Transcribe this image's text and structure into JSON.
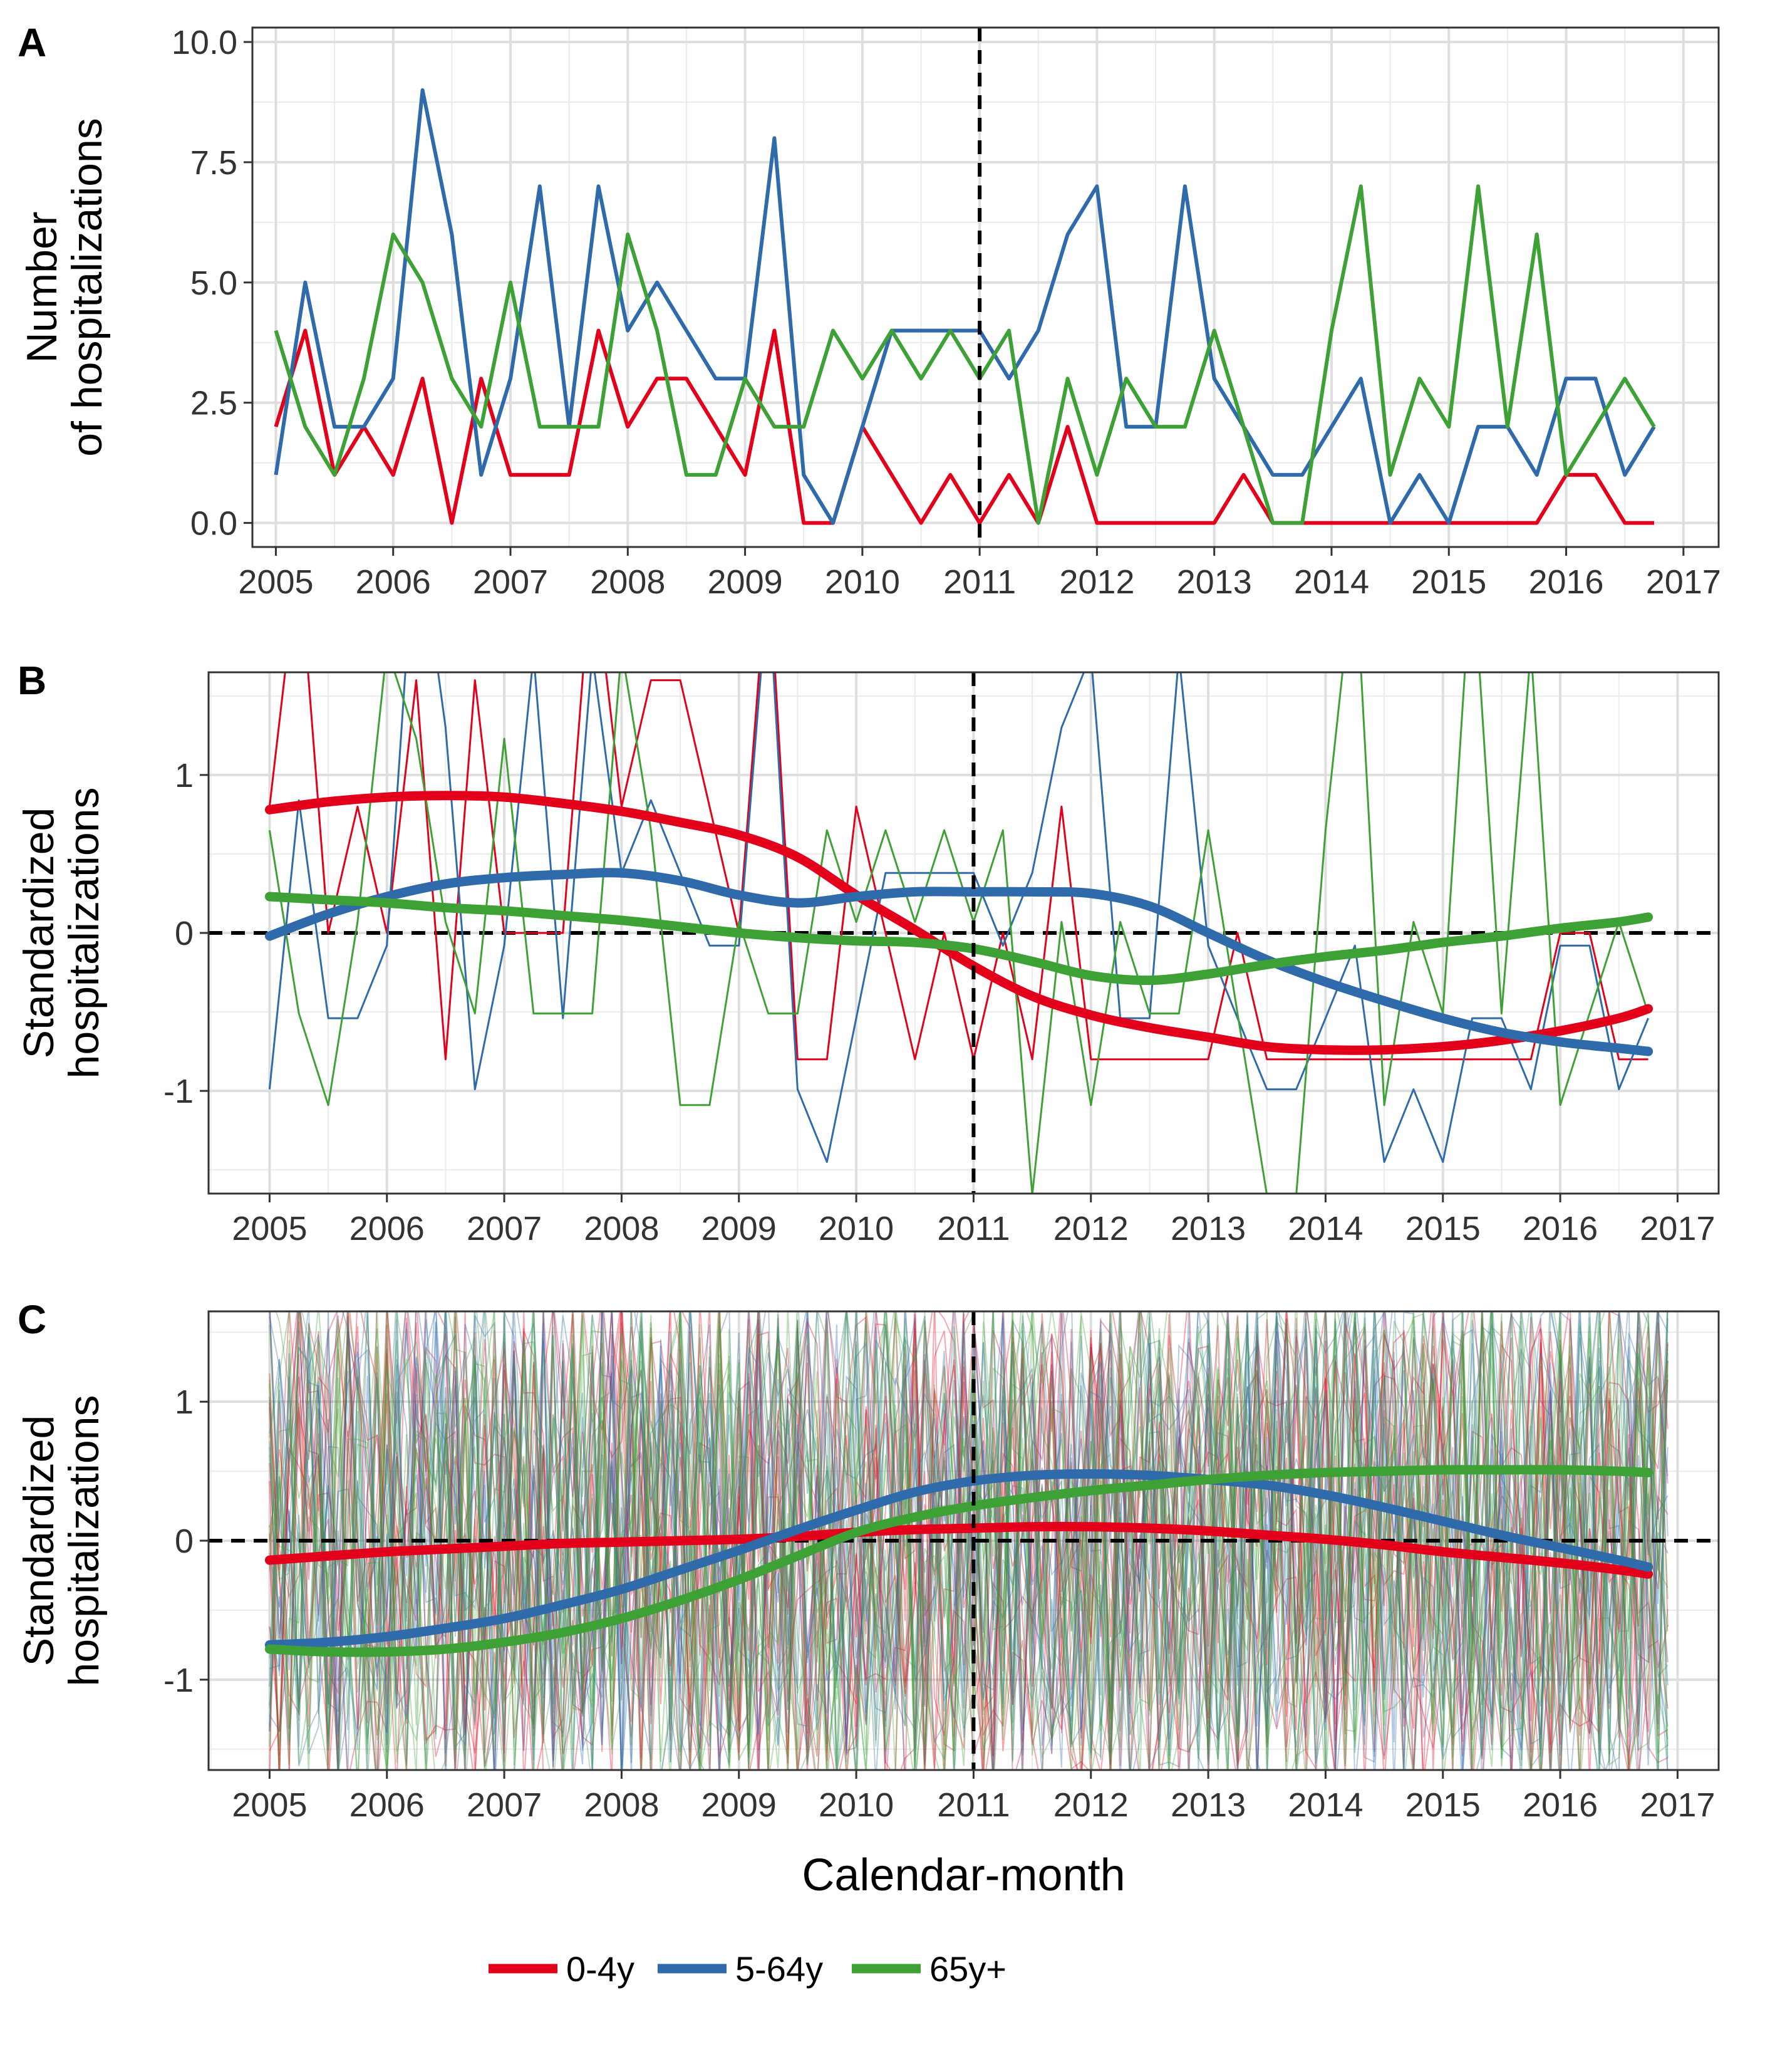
{
  "legend": {
    "position": "bottom",
    "items": [
      {
        "label": "0-4y",
        "color": "#E3001B"
      },
      {
        "label": "5-64y",
        "color": "#2F6BAB"
      },
      {
        "label": "65y+",
        "color": "#3EA136"
      }
    ]
  },
  "chart_data": [
    {
      "panel": "A",
      "type": "line",
      "ylabel": [
        "Number",
        "of hospitalizations"
      ],
      "xlabel": "",
      "xlim": [
        2004.8,
        2017.3
      ],
      "ylim": [
        -0.5,
        10.3
      ],
      "yticks": [
        0.0,
        2.5,
        5.0,
        7.5,
        10.0
      ],
      "ytick_labels": [
        "0.0",
        "2.5",
        "5.0",
        "7.5",
        "10.0"
      ],
      "xticks": [
        2005,
        2006,
        2007,
        2008,
        2009,
        2010,
        2011,
        2012,
        2013,
        2014,
        2015,
        2016,
        2017
      ],
      "vline": 2011,
      "grid": true,
      "x": [
        2005,
        2005.25,
        2005.5,
        2005.75,
        2006,
        2006.25,
        2006.5,
        2006.75,
        2007,
        2007.25,
        2007.5,
        2007.75,
        2008,
        2008.25,
        2008.5,
        2008.75,
        2009,
        2009.25,
        2009.5,
        2009.75,
        2010,
        2010.25,
        2010.5,
        2010.75,
        2011,
        2011.25,
        2011.5,
        2011.75,
        2012,
        2012.25,
        2012.5,
        2012.75,
        2013,
        2013.25,
        2013.5,
        2013.75,
        2014,
        2014.25,
        2014.5,
        2014.75,
        2015,
        2015.25,
        2015.5,
        2015.75,
        2016,
        2016.25,
        2016.5,
        2016.75
      ],
      "series": [
        {
          "name": "0-4y",
          "color": "#E3001B",
          "values": [
            2,
            4,
            1,
            2,
            1,
            3,
            0,
            3,
            1,
            1,
            1,
            4,
            2,
            3,
            3,
            2,
            1,
            4,
            0,
            0,
            2,
            1,
            0,
            1,
            0,
            1,
            0,
            2,
            0,
            0,
            0,
            0,
            0,
            1,
            0,
            0,
            0,
            0,
            0,
            0,
            0,
            0,
            0,
            0,
            1,
            1,
            0,
            0
          ]
        },
        {
          "name": "5-64y",
          "color": "#2F6BAB",
          "values": [
            1,
            5,
            2,
            2,
            3,
            9,
            6,
            1,
            3,
            7,
            2,
            7,
            4,
            5,
            4,
            3,
            3,
            8,
            1,
            0,
            2,
            4,
            4,
            4,
            4,
            3,
            4,
            6,
            7,
            2,
            2,
            7,
            3,
            2,
            1,
            1,
            2,
            3,
            0,
            1,
            0,
            2,
            2,
            1,
            3,
            3,
            1,
            2
          ]
        },
        {
          "name": "65y+",
          "color": "#3EA136",
          "values": [
            4,
            2,
            1,
            3,
            6,
            5,
            3,
            2,
            5,
            2,
            2,
            2,
            6,
            4,
            1,
            1,
            3,
            2,
            2,
            4,
            3,
            4,
            3,
            4,
            3,
            4,
            0,
            3,
            1,
            3,
            2,
            2,
            4,
            2,
            0,
            0,
            4,
            7,
            1,
            3,
            2,
            7,
            2,
            6,
            1,
            2,
            3,
            2
          ]
        }
      ]
    },
    {
      "panel": "B",
      "type": "line",
      "ylabel": [
        "Standardized",
        "hospitalizations"
      ],
      "xlabel": "",
      "xlim": [
        2004.48,
        2017.35
      ],
      "ylim": [
        -1.65,
        1.65
      ],
      "yticks": [
        -1,
        0,
        1
      ],
      "ytick_labels": [
        "-1",
        "0",
        "1"
      ],
      "xticks": [
        2005,
        2006,
        2007,
        2008,
        2009,
        2010,
        2011,
        2012,
        2013,
        2014,
        2015,
        2016,
        2017
      ],
      "vline": 2011,
      "hline": 0,
      "grid": true,
      "x": [
        2005,
        2005.25,
        2005.5,
        2005.75,
        2006,
        2006.25,
        2006.5,
        2006.75,
        2007,
        2007.25,
        2007.5,
        2007.75,
        2008,
        2008.25,
        2008.5,
        2008.75,
        2009,
        2009.25,
        2009.5,
        2009.75,
        2010,
        2010.25,
        2010.5,
        2010.75,
        2011,
        2011.25,
        2011.5,
        2011.75,
        2012,
        2012.25,
        2012.5,
        2012.75,
        2013,
        2013.25,
        2013.5,
        2013.75,
        2014,
        2014.25,
        2014.5,
        2014.75,
        2015,
        2015.25,
        2015.5,
        2015.75,
        2016,
        2016.25,
        2016.5,
        2016.75
      ],
      "series": [
        {
          "name": "0-4y",
          "color": "#E3001B",
          "values": [
            0.8,
            2.4,
            0.0,
            0.8,
            0.0,
            1.6,
            -0.8,
            1.6,
            0.0,
            0.0,
            0.0,
            2.4,
            0.8,
            1.6,
            1.6,
            0.8,
            0.0,
            2.4,
            -0.8,
            -0.8,
            0.8,
            0.0,
            -0.8,
            0.0,
            -0.8,
            0.0,
            -0.8,
            0.8,
            -0.8,
            -0.8,
            -0.8,
            -0.8,
            -0.8,
            0.0,
            -0.8,
            -0.8,
            -0.8,
            -0.8,
            -0.8,
            -0.8,
            -0.8,
            -0.8,
            -0.8,
            -0.8,
            0.0,
            0.0,
            -0.8,
            -0.8
          ]
        },
        {
          "name": "5-64y",
          "color": "#2F6BAB",
          "values": [
            -0.99,
            0.84,
            -0.54,
            -0.54,
            -0.08,
            2.67,
            1.3,
            -0.99,
            -0.08,
            1.76,
            -0.54,
            1.76,
            0.38,
            0.84,
            0.38,
            -0.08,
            -0.08,
            2.22,
            -0.99,
            -1.45,
            -0.54,
            0.38,
            0.38,
            0.38,
            0.38,
            -0.08,
            0.38,
            1.3,
            1.76,
            -0.54,
            -0.54,
            1.76,
            -0.08,
            -0.54,
            -0.99,
            -0.99,
            -0.54,
            -0.08,
            -1.45,
            -0.99,
            -1.45,
            -0.54,
            -0.54,
            -0.99,
            -0.08,
            -0.08,
            -0.99,
            -0.54
          ]
        },
        {
          "name": "65y+",
          "color": "#3EA136",
          "values": [
            0.65,
            -0.51,
            -1.09,
            0.07,
            1.8,
            1.23,
            0.07,
            -0.51,
            1.23,
            -0.51,
            -0.51,
            -0.51,
            1.8,
            0.65,
            -1.09,
            -1.09,
            0.07,
            -0.51,
            -0.51,
            0.65,
            0.07,
            0.65,
            0.07,
            0.65,
            0.07,
            0.65,
            -1.66,
            0.07,
            -1.09,
            0.07,
            -0.51,
            -0.51,
            0.65,
            -0.51,
            -1.66,
            -1.66,
            0.65,
            2.38,
            -1.09,
            0.07,
            -0.51,
            2.38,
            -0.51,
            1.8,
            -1.09,
            -0.51,
            0.07,
            -0.51
          ]
        }
      ],
      "trends": [
        {
          "name": "0-4y",
          "color": "#E3001B",
          "x": [
            2005,
            2005.5,
            2006,
            2006.5,
            2007,
            2007.5,
            2008,
            2008.5,
            2009,
            2009.5,
            2010,
            2010.5,
            2011,
            2011.5,
            2012,
            2012.5,
            2013,
            2013.5,
            2014,
            2014.5,
            2015,
            2015.5,
            2016,
            2016.5,
            2016.75
          ],
          "values": [
            0.78,
            0.83,
            0.86,
            0.87,
            0.86,
            0.82,
            0.77,
            0.7,
            0.62,
            0.48,
            0.24,
            0.02,
            -0.21,
            -0.4,
            -0.52,
            -0.6,
            -0.66,
            -0.72,
            -0.74,
            -0.74,
            -0.72,
            -0.68,
            -0.62,
            -0.54,
            -0.48
          ]
        },
        {
          "name": "5-64y",
          "color": "#2F6BAB",
          "x": [
            2005,
            2005.5,
            2006,
            2006.5,
            2007,
            2007.5,
            2008,
            2008.5,
            2009,
            2009.5,
            2010,
            2010.5,
            2011,
            2011.5,
            2012,
            2012.5,
            2013,
            2013.5,
            2014,
            2014.5,
            2015,
            2015.5,
            2016,
            2016.5,
            2016.75
          ],
          "values": [
            -0.02,
            0.12,
            0.23,
            0.31,
            0.35,
            0.37,
            0.38,
            0.33,
            0.24,
            0.19,
            0.23,
            0.26,
            0.26,
            0.26,
            0.25,
            0.17,
            0.0,
            -0.17,
            -0.31,
            -0.43,
            -0.54,
            -0.63,
            -0.69,
            -0.73,
            -0.75
          ]
        },
        {
          "name": "65y+",
          "color": "#3EA136",
          "x": [
            2005,
            2005.5,
            2006,
            2006.5,
            2007,
            2007.5,
            2008,
            2008.5,
            2009,
            2009.5,
            2010,
            2010.5,
            2011,
            2011.5,
            2012,
            2012.5,
            2013,
            2013.5,
            2014,
            2014.5,
            2015,
            2015.5,
            2016,
            2016.5,
            2016.75
          ],
          "values": [
            0.23,
            0.21,
            0.19,
            0.16,
            0.14,
            0.11,
            0.08,
            0.04,
            0.0,
            -0.03,
            -0.05,
            -0.06,
            -0.1,
            -0.18,
            -0.27,
            -0.3,
            -0.26,
            -0.2,
            -0.15,
            -0.11,
            -0.06,
            -0.02,
            0.03,
            0.07,
            0.1
          ]
        }
      ]
    },
    {
      "panel": "C",
      "type": "line",
      "ylabel": [
        "Standardized",
        "hospitalizations"
      ],
      "xlabel": "Calendar-month",
      "xlim": [
        2004.48,
        2017.35
      ],
      "ylim": [
        -1.65,
        1.65
      ],
      "yticks": [
        -1,
        0,
        1
      ],
      "ytick_labels": [
        "-1",
        "0",
        "1"
      ],
      "xticks": [
        2005,
        2006,
        2007,
        2008,
        2009,
        2010,
        2011,
        2012,
        2013,
        2014,
        2015,
        2016,
        2017
      ],
      "vline": 2011,
      "hline": 0,
      "grid": true,
      "background_series": {
        "count_per_group": 14,
        "range": [
          -1.65,
          1.65
        ],
        "opacity": 0.35
      },
      "trends": [
        {
          "name": "0-4y",
          "color": "#E3001B",
          "x": [
            2005,
            2005.5,
            2006,
            2006.5,
            2007,
            2007.5,
            2008,
            2008.5,
            2009,
            2009.5,
            2010,
            2010.5,
            2011,
            2011.5,
            2012,
            2012.5,
            2013,
            2013.5,
            2014,
            2014.5,
            2015,
            2015.5,
            2016,
            2016.5,
            2016.75
          ],
          "values": [
            -0.14,
            -0.11,
            -0.08,
            -0.06,
            -0.04,
            -0.02,
            -0.01,
            0.0,
            0.01,
            0.03,
            0.06,
            0.08,
            0.09,
            0.1,
            0.1,
            0.09,
            0.07,
            0.04,
            0.01,
            -0.03,
            -0.08,
            -0.12,
            -0.16,
            -0.21,
            -0.24
          ]
        },
        {
          "name": "5-64y",
          "color": "#2F6BAB",
          "x": [
            2005,
            2005.5,
            2006,
            2006.5,
            2007,
            2007.5,
            2008,
            2008.5,
            2009,
            2009.5,
            2010,
            2010.5,
            2011,
            2011.5,
            2012,
            2012.5,
            2013,
            2013.5,
            2014,
            2014.5,
            2015,
            2015.5,
            2016,
            2016.5,
            2016.75
          ],
          "values": [
            -0.75,
            -0.73,
            -0.69,
            -0.63,
            -0.56,
            -0.46,
            -0.35,
            -0.21,
            -0.07,
            0.08,
            0.22,
            0.35,
            0.43,
            0.47,
            0.48,
            0.47,
            0.44,
            0.4,
            0.33,
            0.24,
            0.14,
            0.04,
            -0.05,
            -0.14,
            -0.19
          ]
        },
        {
          "name": "65y+",
          "color": "#3EA136",
          "x": [
            2005,
            2005.5,
            2006,
            2006.5,
            2007,
            2007.5,
            2008,
            2008.5,
            2009,
            2009.5,
            2010,
            2010.5,
            2011,
            2011.5,
            2012,
            2012.5,
            2013,
            2013.5,
            2014,
            2014.5,
            2015,
            2015.5,
            2016,
            2016.5,
            2016.75
          ],
          "values": [
            -0.78,
            -0.8,
            -0.8,
            -0.78,
            -0.73,
            -0.66,
            -0.56,
            -0.43,
            -0.28,
            -0.11,
            0.06,
            0.17,
            0.25,
            0.31,
            0.36,
            0.4,
            0.44,
            0.47,
            0.49,
            0.5,
            0.51,
            0.51,
            0.51,
            0.5,
            0.49
          ]
        }
      ]
    }
  ]
}
